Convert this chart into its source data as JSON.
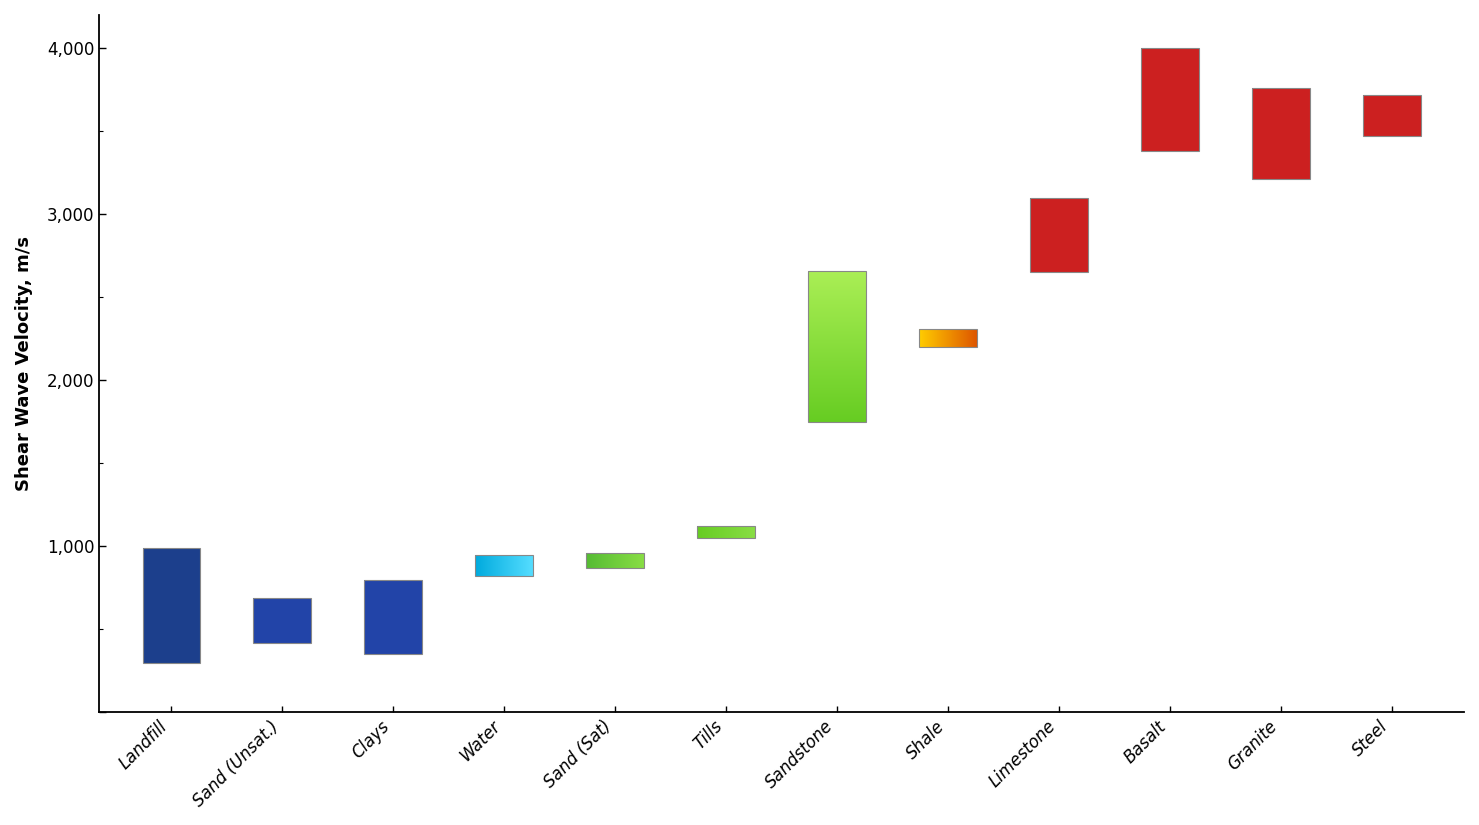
{
  "materials": [
    "Landfill",
    "Sand (Unsat.)",
    "Clays",
    "Water",
    "Sand (Sat)",
    "Tills",
    "Sandstone",
    "Shale",
    "Limestone",
    "Basalt",
    "Granite",
    "Steel"
  ],
  "vel_min": [
    300,
    420,
    350,
    820,
    870,
    1050,
    1750,
    2200,
    2650,
    3380,
    3210,
    3470
  ],
  "vel_max": [
    990,
    690,
    800,
    950,
    960,
    1120,
    2660,
    2310,
    3100,
    4000,
    3760,
    3720
  ],
  "colors_left": [
    "#1c3f8c",
    "#2244a8",
    "#2244a8",
    "#00aadd",
    "#55bb33",
    "#66cc22",
    "#66cc22",
    "#ffcc00",
    "#cc2020",
    "#cc2020",
    "#cc2020",
    "#cc2020"
  ],
  "colors_right": [
    "#1c3f8c",
    "#2244a8",
    "#2244a8",
    "#55ddff",
    "#88dd44",
    "#88dd44",
    "#aaee55",
    "#dd5500",
    "#cc2020",
    "#cc2020",
    "#cc2020",
    "#cc2020"
  ],
  "gradient_orientation": [
    "v",
    "v",
    "v",
    "h",
    "h",
    "h",
    "v",
    "h",
    "v",
    "v",
    "v",
    "v"
  ],
  "ylabel": "Shear Wave Velocity, m/s",
  "ylim": [
    0,
    4200
  ],
  "yticks": [
    0,
    1000,
    2000,
    3000,
    4000
  ],
  "ytick_labels": [
    "",
    "1,000",
    "2,000",
    "3,000",
    "4,000"
  ],
  "bar_width": 0.52,
  "background_color": "#ffffff"
}
